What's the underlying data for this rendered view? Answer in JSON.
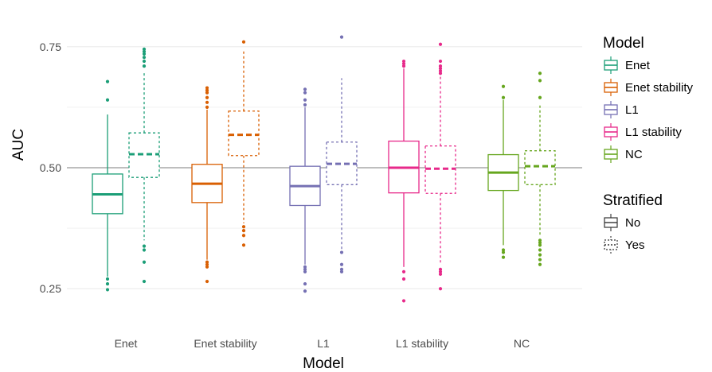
{
  "chart_data": {
    "type": "boxplot",
    "xlabel": "Model",
    "ylabel": "AUC",
    "ylim": [
      0.16,
      0.84
    ],
    "y_ticks": [
      "0.25",
      "0.50",
      "0.75"
    ],
    "reference_line": 0.5,
    "grid": "horizontal-only",
    "legend_placement": "right",
    "categories": [
      "Enet",
      "Enet stability",
      "L1",
      "L1 stability",
      "NC"
    ],
    "colors": {
      "Enet": "#1b9e77",
      "Enet stability": "#d95f02",
      "L1": "#7570b3",
      "L1 stability": "#e7298a",
      "NC": "#66a61e"
    },
    "groups": [
      {
        "model": "Enet",
        "boxes": [
          {
            "stratified": "No",
            "low": 0.275,
            "q1": 0.405,
            "median": 0.445,
            "q3": 0.487,
            "high": 0.61,
            "outliers": [
              0.248,
              0.26,
              0.27,
              0.64,
              0.678
            ]
          },
          {
            "stratified": "Yes",
            "low": 0.35,
            "q1": 0.48,
            "median": 0.528,
            "q3": 0.572,
            "high": 0.7,
            "outliers": [
              0.265,
              0.305,
              0.33,
              0.338,
              0.71,
              0.72,
              0.728,
              0.735,
              0.74,
              0.745
            ]
          }
        ]
      },
      {
        "model": "Enet stability",
        "boxes": [
          {
            "stratified": "No",
            "low": 0.31,
            "q1": 0.428,
            "median": 0.467,
            "q3": 0.507,
            "high": 0.62,
            "outliers": [
              0.265,
              0.295,
              0.3,
              0.305,
              0.625,
              0.635,
              0.645,
              0.655,
              0.66,
              0.665
            ]
          },
          {
            "stratified": "Yes",
            "low": 0.385,
            "q1": 0.525,
            "median": 0.568,
            "q3": 0.617,
            "high": 0.745,
            "outliers": [
              0.34,
              0.36,
              0.37,
              0.378,
              0.76
            ]
          }
        ]
      },
      {
        "model": "L1",
        "boxes": [
          {
            "stratified": "No",
            "low": 0.3,
            "q1": 0.422,
            "median": 0.462,
            "q3": 0.503,
            "high": 0.625,
            "outliers": [
              0.245,
              0.26,
              0.285,
              0.29,
              0.295,
              0.63,
              0.64,
              0.655,
              0.662
            ]
          },
          {
            "stratified": "Yes",
            "low": 0.33,
            "q1": 0.465,
            "median": 0.508,
            "q3": 0.553,
            "high": 0.685,
            "outliers": [
              0.285,
              0.29,
              0.3,
              0.325,
              0.77
            ]
          }
        ]
      },
      {
        "model": "L1 stability",
        "boxes": [
          {
            "stratified": "No",
            "low": 0.295,
            "q1": 0.448,
            "median": 0.5,
            "q3": 0.555,
            "high": 0.705,
            "outliers": [
              0.225,
              0.27,
              0.285,
              0.71,
              0.715,
              0.72
            ]
          },
          {
            "stratified": "Yes",
            "low": 0.3,
            "q1": 0.447,
            "median": 0.498,
            "q3": 0.545,
            "high": 0.69,
            "outliers": [
              0.25,
              0.28,
              0.285,
              0.29,
              0.695,
              0.7,
              0.705,
              0.71,
              0.72,
              0.755
            ]
          }
        ]
      },
      {
        "model": "NC",
        "boxes": [
          {
            "stratified": "No",
            "low": 0.34,
            "q1": 0.453,
            "median": 0.49,
            "q3": 0.527,
            "high": 0.64,
            "outliers": [
              0.315,
              0.325,
              0.33,
              0.645,
              0.668
            ]
          },
          {
            "stratified": "Yes",
            "low": 0.36,
            "q1": 0.465,
            "median": 0.503,
            "q3": 0.535,
            "high": 0.63,
            "outliers": [
              0.3,
              0.31,
              0.32,
              0.33,
              0.34,
              0.345,
              0.35,
              0.645,
              0.68,
              0.695
            ]
          }
        ]
      }
    ],
    "legend": {
      "model_title": "Model",
      "model_items": [
        "Enet",
        "Enet stability",
        "L1",
        "L1 stability",
        "NC"
      ],
      "stratified_title": "Stratified",
      "stratified_items": [
        "No",
        "Yes"
      ]
    }
  }
}
